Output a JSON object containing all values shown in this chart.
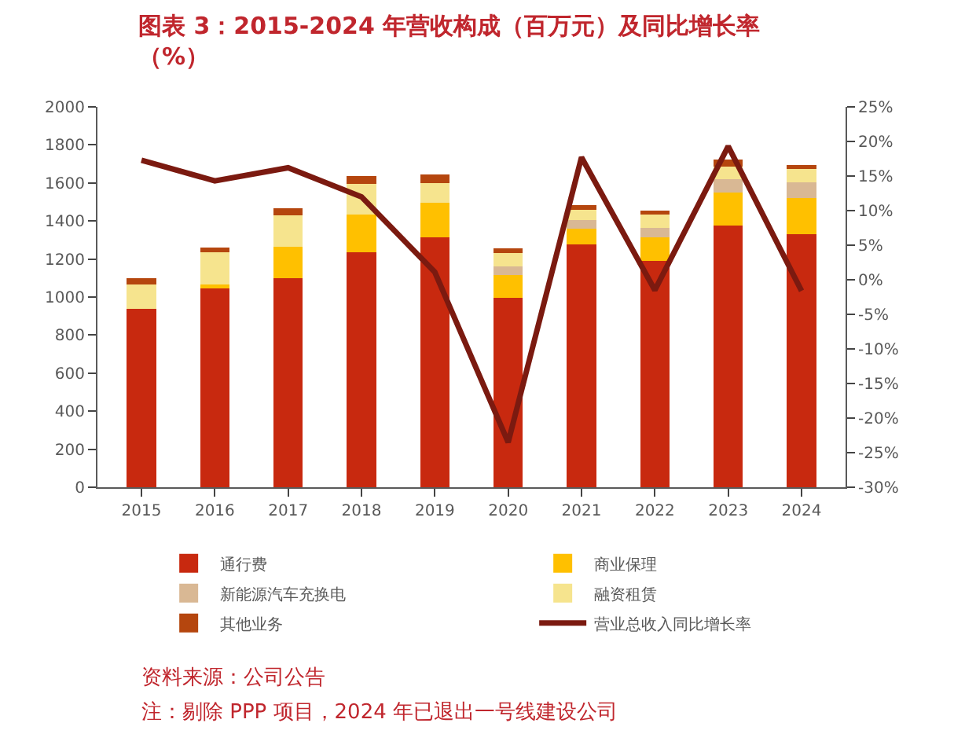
{
  "chart_data": {
    "type": "bar",
    "title": "图表 3：2015-2024 年营收构成（百万元）及同比增长率（%）",
    "categories": [
      "2015",
      "2016",
      "2017",
      "2018",
      "2019",
      "2020",
      "2021",
      "2022",
      "2023",
      "2024"
    ],
    "stacked": true,
    "series": [
      {
        "name": "通行费",
        "color": "#c8290f",
        "values": [
          940,
          1045,
          1100,
          1235,
          1315,
          995,
          1275,
          1190,
          1375,
          1330
        ]
      },
      {
        "name": "商业保理",
        "color": "#ffc000",
        "values": [
          0,
          20,
          165,
          200,
          180,
          120,
          85,
          125,
          175,
          190
        ]
      },
      {
        "name": "新能源汽车充换电",
        "color": "#d9b894",
        "values": [
          0,
          0,
          0,
          0,
          0,
          45,
          45,
          50,
          70,
          85
        ]
      },
      {
        "name": "融资租赁",
        "color": "#f6e48e",
        "values": [
          125,
          170,
          165,
          160,
          105,
          70,
          55,
          70,
          65,
          70
        ]
      },
      {
        "name": "其他业务",
        "color": "#b5460e",
        "values": [
          35,
          25,
          35,
          40,
          45,
          25,
          25,
          20,
          40,
          20
        ]
      },
      {
        "name": "营业总收入同比增长率",
        "color": "#7b1a10",
        "type": "line",
        "axis": "y2",
        "values": [
          17.3,
          14.3,
          16.2,
          12.0,
          1.1,
          -23.5,
          17.7,
          -1.5,
          19.3,
          -1.6
        ]
      }
    ],
    "ylim": [
      0,
      2000
    ],
    "yticks": [
      0,
      200,
      400,
      600,
      800,
      1000,
      1200,
      1400,
      1600,
      1800,
      2000
    ],
    "y2lim": [
      -30,
      25
    ],
    "y2ticks": [
      {
        "value": -30,
        "label": "-30%"
      },
      {
        "value": -25,
        "label": "-25%"
      },
      {
        "value": -20,
        "label": "-20%"
      },
      {
        "value": -15,
        "label": "-15%"
      },
      {
        "value": -10,
        "label": "-10%"
      },
      {
        "value": -5,
        "label": "-5%"
      },
      {
        "value": 0,
        "label": "0%"
      },
      {
        "value": 5,
        "label": "5%"
      },
      {
        "value": 10,
        "label": "10%"
      },
      {
        "value": 15,
        "label": "15%"
      },
      {
        "value": 20,
        "label": "20%"
      },
      {
        "value": 25,
        "label": "25%"
      }
    ],
    "legend": "bottom",
    "annotations": [
      "资料来源：公司公告",
      "注：剔除 PPP 项目，2024 年已退出一号线建设公司"
    ]
  }
}
